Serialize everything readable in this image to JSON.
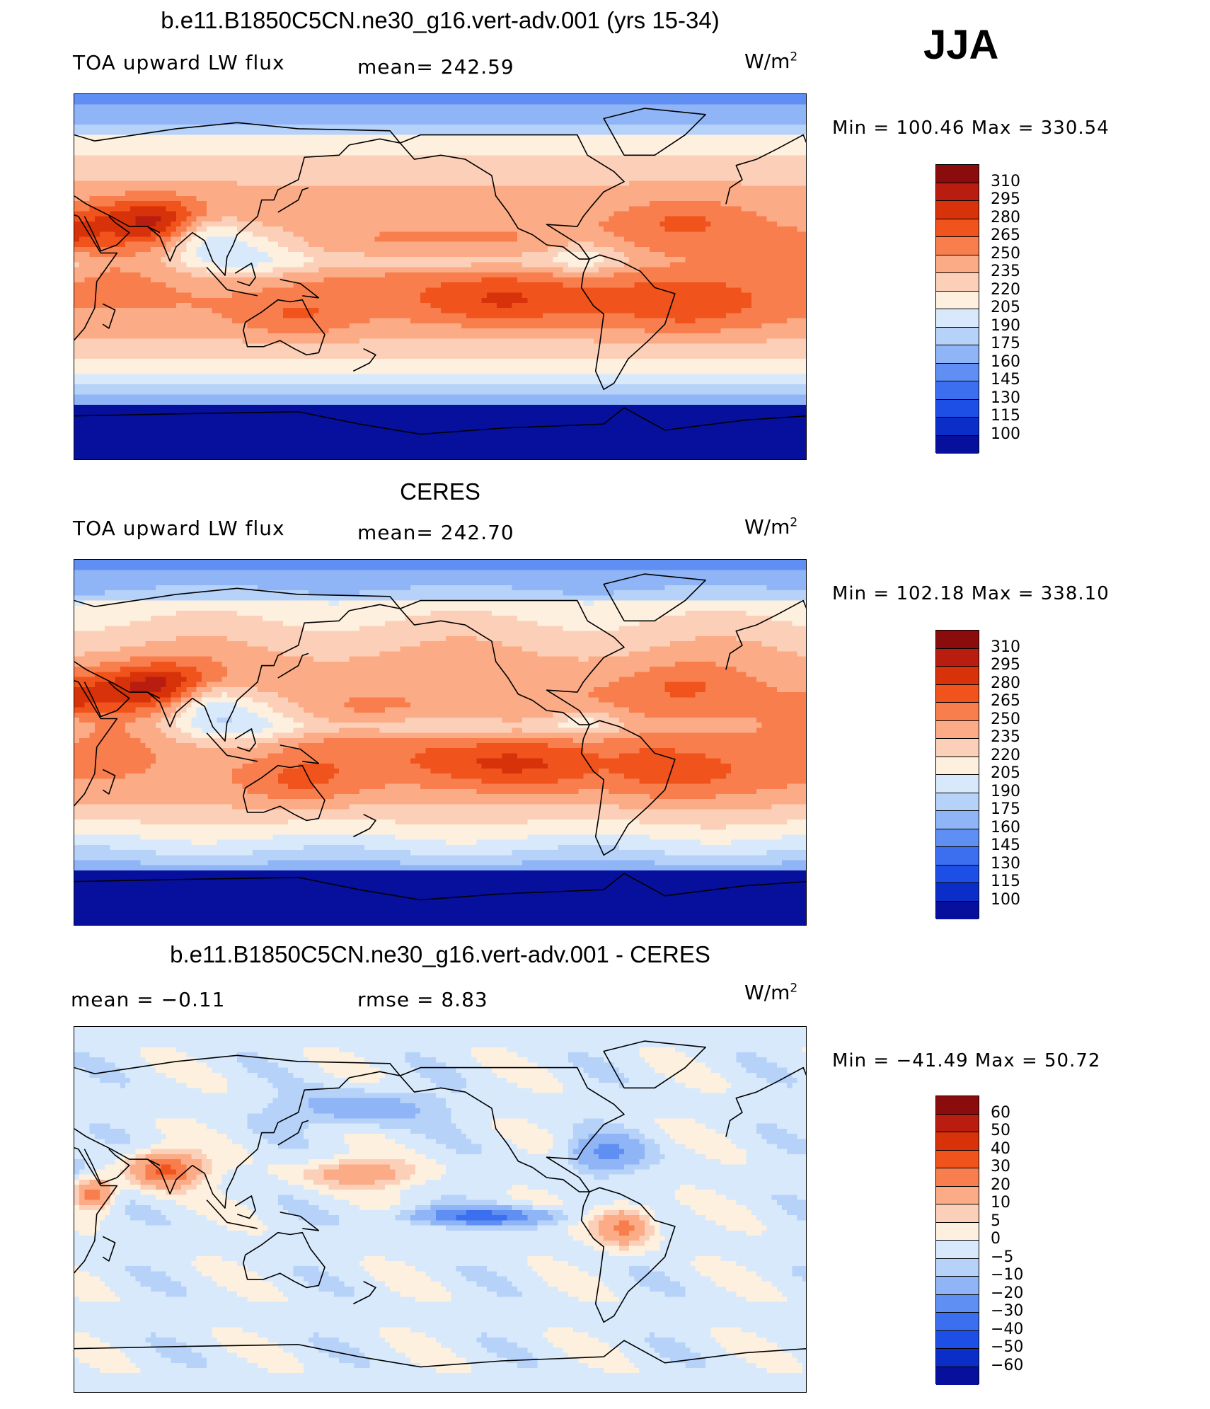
{
  "season": "JJA",
  "panels": [
    {
      "title": "b.e11.B1850C5CN.ne30_g16.vert-adv.001 (yrs 15-34)",
      "left_label": "TOA upward LW flux",
      "mid_label": "mean=  242.59",
      "units": "W/m",
      "units_sup": "2",
      "minmax": "Min  =  100.46  Max  =  330.54",
      "field": "model",
      "colorbar": {
        "colors": [
          "#8b0c0c",
          "#b81d10",
          "#d8320a",
          "#f0541c",
          "#f87e4e",
          "#fbab85",
          "#fcd0b8",
          "#fdf0df",
          "#d7e9fb",
          "#b6d2f9",
          "#8fb5f6",
          "#5f8ff3",
          "#3c6ff0",
          "#1d4ee6",
          "#0b2ec9",
          "#06109c"
        ],
        "labels": [
          "310",
          "295",
          "280",
          "265",
          "250",
          "235",
          "220",
          "205",
          "190",
          "175",
          "160",
          "145",
          "130",
          "115",
          "100"
        ]
      }
    },
    {
      "title": "CERES",
      "left_label": "TOA upward LW flux",
      "mid_label": "mean=  242.70",
      "units": "W/m",
      "units_sup": "2",
      "minmax": "Min  =  102.18  Max  =  338.10",
      "field": "obs",
      "colorbar": {
        "colors": [
          "#8b0c0c",
          "#b81d10",
          "#d8320a",
          "#f0541c",
          "#f87e4e",
          "#fbab85",
          "#fcd0b8",
          "#fdf0df",
          "#d7e9fb",
          "#b6d2f9",
          "#8fb5f6",
          "#5f8ff3",
          "#3c6ff0",
          "#1d4ee6",
          "#0b2ec9",
          "#06109c"
        ],
        "labels": [
          "310",
          "295",
          "280",
          "265",
          "250",
          "235",
          "220",
          "205",
          "190",
          "175",
          "160",
          "145",
          "130",
          "115",
          "100"
        ]
      }
    },
    {
      "title": "b.e11.B1850C5CN.ne30_g16.vert-adv.001 - CERES",
      "left_label": "mean  =    −0.11",
      "mid_label": "rmse  =     8.83",
      "units": "W/m",
      "units_sup": "2",
      "minmax": "Min  =  −41.49  Max  =    50.72",
      "field": "diff",
      "colorbar": {
        "colors": [
          "#8b0c0c",
          "#b81d10",
          "#d8320a",
          "#f0541c",
          "#f87e4e",
          "#fbab85",
          "#fcd0b8",
          "#fdf0df",
          "#d7e9fb",
          "#b6d2f9",
          "#8fb5f6",
          "#5f8ff3",
          "#3c6ff0",
          "#1d4ee6",
          "#0b2ec9",
          "#06109c"
        ],
        "labels": [
          "60",
          "50",
          "40",
          "30",
          "20",
          "10",
          "5",
          "0",
          "−5",
          "−10",
          "−20",
          "−30",
          "−40",
          "−50",
          "−60"
        ]
      }
    }
  ]
}
